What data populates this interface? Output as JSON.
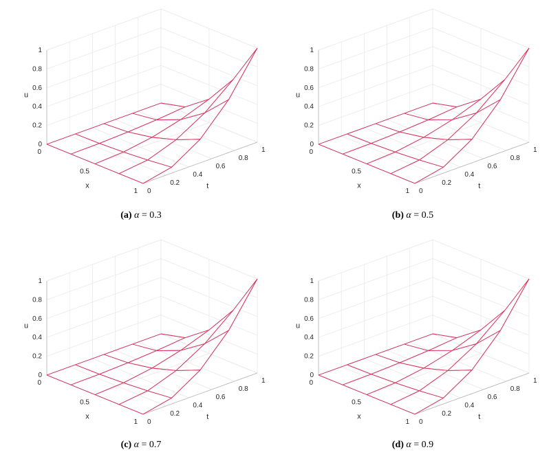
{
  "chart_data": [
    {
      "type": "surface-mesh",
      "panel_label": "(a)",
      "caption_symbol": "α",
      "caption_value": "= 0.3",
      "xlabel": "x",
      "ylabel": "t",
      "zlabel": "u",
      "x_ticks": [
        "0",
        "0.5",
        "1"
      ],
      "t_ticks": [
        "0",
        "0.2",
        "0.4",
        "0.6",
        "0.8",
        "1"
      ],
      "u_ticks": [
        "0",
        "0.2",
        "0.4",
        "0.6",
        "0.8",
        "1"
      ],
      "x_grid": [
        0,
        0.25,
        0.5,
        0.75,
        1
      ],
      "t_grid": [
        0,
        0.25,
        0.5,
        0.75,
        1
      ],
      "series": [
        {
          "color": "#3030ff",
          "values": [
            [
              0,
              0,
              0,
              0,
              0
            ],
            [
              0,
              0.004,
              0.016,
              0.035,
              0.063
            ],
            [
              0,
              0.016,
              0.063,
              0.141,
              0.25
            ],
            [
              0,
              0.035,
              0.141,
              0.316,
              0.563
            ],
            [
              0,
              0.063,
              0.25,
              0.563,
              1
            ]
          ]
        },
        {
          "color": "#ff3030",
          "values": [
            [
              0,
              0,
              0,
              0,
              0
            ],
            [
              0,
              0.004,
              0.016,
              0.035,
              0.063
            ],
            [
              0,
              0.016,
              0.063,
              0.141,
              0.25
            ],
            [
              0,
              0.035,
              0.141,
              0.316,
              0.563
            ],
            [
              0,
              0.063,
              0.25,
              0.563,
              1
            ]
          ]
        }
      ]
    },
    {
      "type": "surface-mesh",
      "panel_label": "(b)",
      "caption_symbol": "α",
      "caption_value": "= 0.5",
      "xlabel": "x",
      "ylabel": "t",
      "zlabel": "u",
      "x_ticks": [
        "0",
        "0.5",
        "1"
      ],
      "t_ticks": [
        "0",
        "0.2",
        "0.4",
        "0.6",
        "0.8",
        "1"
      ],
      "u_ticks": [
        "0",
        "0.2",
        "0.4",
        "0.6",
        "0.8",
        "1"
      ],
      "x_grid": [
        0,
        0.25,
        0.5,
        0.75,
        1
      ],
      "t_grid": [
        0,
        0.25,
        0.5,
        0.75,
        1
      ],
      "series": [
        {
          "color": "#3030ff",
          "values": [
            [
              0,
              0,
              0,
              0,
              0
            ],
            [
              0,
              0.004,
              0.016,
              0.035,
              0.063
            ],
            [
              0,
              0.016,
              0.063,
              0.141,
              0.25
            ],
            [
              0,
              0.035,
              0.141,
              0.316,
              0.563
            ],
            [
              0,
              0.063,
              0.25,
              0.563,
              1
            ]
          ]
        },
        {
          "color": "#ff3030",
          "values": [
            [
              0,
              0,
              0,
              0,
              0
            ],
            [
              0,
              0.004,
              0.016,
              0.035,
              0.063
            ],
            [
              0,
              0.016,
              0.063,
              0.141,
              0.25
            ],
            [
              0,
              0.035,
              0.141,
              0.316,
              0.563
            ],
            [
              0,
              0.063,
              0.25,
              0.563,
              1
            ]
          ]
        }
      ]
    },
    {
      "type": "surface-mesh",
      "panel_label": "(c)",
      "caption_symbol": "α",
      "caption_value": "= 0.7",
      "xlabel": "x",
      "ylabel": "t",
      "zlabel": "u",
      "x_ticks": [
        "0",
        "0.5",
        "1"
      ],
      "t_ticks": [
        "0",
        "0.2",
        "0.4",
        "0.6",
        "0.8",
        "1"
      ],
      "u_ticks": [
        "0",
        "0.2",
        "0.4",
        "0.6",
        "0.8",
        "1"
      ],
      "x_grid": [
        0,
        0.25,
        0.5,
        0.75,
        1
      ],
      "t_grid": [
        0,
        0.25,
        0.5,
        0.75,
        1
      ],
      "series": [
        {
          "color": "#3030ff",
          "values": [
            [
              0,
              0,
              0,
              0,
              0
            ],
            [
              0,
              0.004,
              0.016,
              0.035,
              0.063
            ],
            [
              0,
              0.016,
              0.063,
              0.141,
              0.25
            ],
            [
              0,
              0.035,
              0.141,
              0.316,
              0.563
            ],
            [
              0,
              0.063,
              0.25,
              0.563,
              1
            ]
          ]
        },
        {
          "color": "#ff3030",
          "values": [
            [
              0,
              0,
              0,
              0,
              0
            ],
            [
              0,
              0.004,
              0.016,
              0.035,
              0.063
            ],
            [
              0,
              0.016,
              0.063,
              0.141,
              0.25
            ],
            [
              0,
              0.035,
              0.141,
              0.316,
              0.563
            ],
            [
              0,
              0.063,
              0.25,
              0.563,
              1
            ]
          ]
        }
      ]
    },
    {
      "type": "surface-mesh",
      "panel_label": "(d)",
      "caption_symbol": "α",
      "caption_value": "= 0.9",
      "xlabel": "x",
      "ylabel": "t",
      "zlabel": "u",
      "x_ticks": [
        "0",
        "0.5",
        "1"
      ],
      "t_ticks": [
        "0",
        "0.2",
        "0.4",
        "0.6",
        "0.8",
        "1"
      ],
      "u_ticks": [
        "0",
        "0.2",
        "0.4",
        "0.6",
        "0.8",
        "1"
      ],
      "x_grid": [
        0,
        0.25,
        0.5,
        0.75,
        1
      ],
      "t_grid": [
        0,
        0.25,
        0.5,
        0.75,
        1
      ],
      "series": [
        {
          "color": "#3030ff",
          "values": [
            [
              0,
              0,
              0,
              0,
              0
            ],
            [
              0,
              0.004,
              0.016,
              0.035,
              0.063
            ],
            [
              0,
              0.016,
              0.063,
              0.141,
              0.25
            ],
            [
              0,
              0.035,
              0.141,
              0.316,
              0.563
            ],
            [
              0,
              0.063,
              0.25,
              0.563,
              1
            ]
          ]
        },
        {
          "color": "#ff3030",
          "values": [
            [
              0,
              0,
              0,
              0,
              0
            ],
            [
              0,
              0.004,
              0.016,
              0.035,
              0.063
            ],
            [
              0,
              0.016,
              0.063,
              0.141,
              0.25
            ],
            [
              0,
              0.035,
              0.141,
              0.316,
              0.563
            ],
            [
              0,
              0.063,
              0.25,
              0.563,
              1
            ]
          ]
        }
      ]
    }
  ]
}
